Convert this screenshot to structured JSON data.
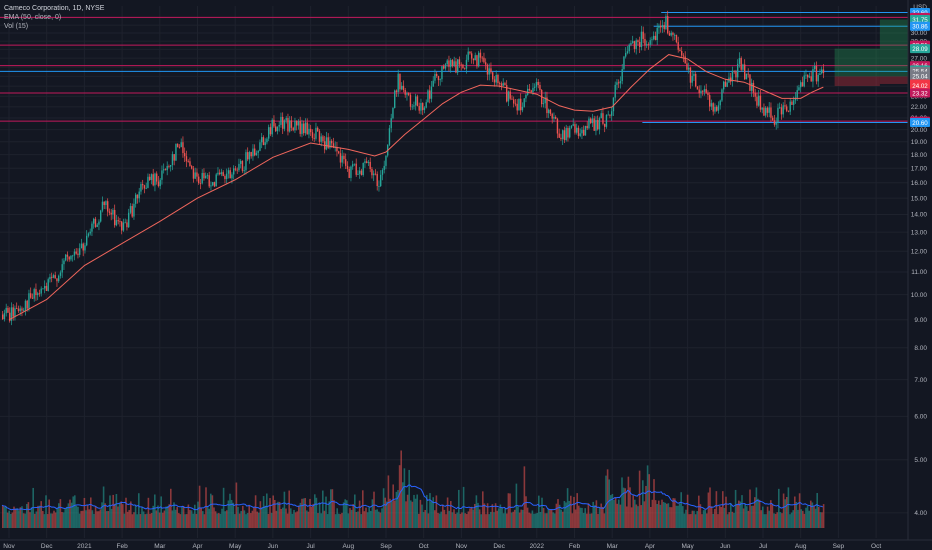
{
  "header": {
    "symbol_title": "Cameco Corporation, 1D, NYSE",
    "indicator_ema": "EMA (50, close, 0)",
    "indicator_vol": "Vol (15)"
  },
  "chart_data": {
    "type": "candlestick",
    "currency_label": "USD",
    "ylim": [
      3.6,
      33.6
    ],
    "y_ticks": [
      4.0,
      5.0,
      6.0,
      7.0,
      8.0,
      9.0,
      10.0,
      11.0,
      12.0,
      13.0,
      14.0,
      15.0,
      16.0,
      17.0,
      18.0,
      19.0,
      20.0,
      21.0,
      22.0,
      23.0,
      24.0,
      25.0,
      26.0,
      27.0,
      28.0,
      29.0,
      30.0,
      31.0,
      32.0
    ],
    "x_ticks": [
      {
        "label": "Nov",
        "month": 0
      },
      {
        "label": "Dec",
        "month": 1
      },
      {
        "label": "2021",
        "month": 2
      },
      {
        "label": "Feb",
        "month": 3
      },
      {
        "label": "Mar",
        "month": 4
      },
      {
        "label": "Apr",
        "month": 5
      },
      {
        "label": "May",
        "month": 6
      },
      {
        "label": "Jun",
        "month": 7
      },
      {
        "label": "Jul",
        "month": 8
      },
      {
        "label": "Aug",
        "month": 9
      },
      {
        "label": "Sep",
        "month": 10
      },
      {
        "label": "Oct",
        "month": 11
      },
      {
        "label": "Nov",
        "month": 12
      },
      {
        "label": "Dec",
        "month": 13
      },
      {
        "label": "2022",
        "month": 14
      },
      {
        "label": "Feb",
        "month": 15
      },
      {
        "label": "Mar",
        "month": 16
      },
      {
        "label": "Apr",
        "month": 17
      },
      {
        "label": "May",
        "month": 18
      },
      {
        "label": "Jun",
        "month": 19
      },
      {
        "label": "Jul",
        "month": 20
      },
      {
        "label": "Aug",
        "month": 21
      },
      {
        "label": "Sep",
        "month": 22
      },
      {
        "label": "Oct",
        "month": 23
      }
    ],
    "price_path": [
      [
        0,
        9.2
      ],
      [
        1,
        10.3
      ],
      [
        1.5,
        11.5
      ],
      [
        2,
        12.3
      ],
      [
        2.5,
        14.5
      ],
      [
        3,
        13.2
      ],
      [
        3.6,
        16.0
      ],
      [
        4,
        16.3
      ],
      [
        4.5,
        18.8
      ],
      [
        5,
        16.2
      ],
      [
        5.7,
        16.3
      ],
      [
        6,
        16.6
      ],
      [
        6.6,
        18.8
      ],
      [
        7.1,
        20.7
      ],
      [
        7.6,
        20.2
      ],
      [
        8,
        19.8
      ],
      [
        8.5,
        18.6
      ],
      [
        9,
        16.8
      ],
      [
        9.5,
        17.2
      ],
      [
        9.8,
        16.0
      ],
      [
        10,
        18.2
      ],
      [
        10.3,
        24.9
      ],
      [
        10.6,
        22.3
      ],
      [
        11,
        22.4
      ],
      [
        11.5,
        26.2
      ],
      [
        12,
        26.0
      ],
      [
        12.3,
        27.5
      ],
      [
        12.8,
        24.8
      ],
      [
        13.2,
        23.2
      ],
      [
        13.5,
        22.3
      ],
      [
        14,
        23.8
      ],
      [
        14.6,
        19.6
      ],
      [
        15,
        19.9
      ],
      [
        15.4,
        20.3
      ],
      [
        15.9,
        21.0
      ],
      [
        16.2,
        25.4
      ],
      [
        16.5,
        29.0
      ],
      [
        17,
        29.5
      ],
      [
        17.4,
        31.3
      ],
      [
        17.7,
        28.2
      ],
      [
        18,
        25.4
      ],
      [
        18.3,
        24.0
      ],
      [
        18.7,
        21.8
      ],
      [
        19,
        24.3
      ],
      [
        19.4,
        26.5
      ],
      [
        19.7,
        23.5
      ],
      [
        20,
        21.5
      ],
      [
        20.3,
        21.1
      ],
      [
        20.7,
        22.2
      ],
      [
        21,
        24.7
      ],
      [
        21.3,
        25.3
      ],
      [
        21.6,
        25.5
      ]
    ],
    "ema_path": [
      [
        0,
        9.0
      ],
      [
        1,
        9.8
      ],
      [
        2,
        11.3
      ],
      [
        3,
        12.4
      ],
      [
        4,
        13.6
      ],
      [
        5,
        15.0
      ],
      [
        6,
        16.2
      ],
      [
        7,
        17.8
      ],
      [
        8,
        18.9
      ],
      [
        9,
        18.4
      ],
      [
        9.7,
        17.9
      ],
      [
        10,
        18.2
      ],
      [
        10.5,
        19.6
      ],
      [
        11,
        20.9
      ],
      [
        11.5,
        22.3
      ],
      [
        12,
        23.4
      ],
      [
        12.5,
        24.1
      ],
      [
        13,
        24.0
      ],
      [
        14,
        23.2
      ],
      [
        14.6,
        22.1
      ],
      [
        15,
        21.7
      ],
      [
        15.5,
        21.6
      ],
      [
        16,
        22.0
      ],
      [
        16.5,
        23.9
      ],
      [
        17,
        25.8
      ],
      [
        17.5,
        27.4
      ],
      [
        18,
        26.9
      ],
      [
        18.5,
        25.5
      ],
      [
        19,
        24.7
      ],
      [
        19.5,
        24.4
      ],
      [
        20,
        23.6
      ],
      [
        20.5,
        22.8
      ],
      [
        21,
        22.8
      ],
      [
        21.3,
        23.4
      ],
      [
        21.6,
        23.9
      ]
    ],
    "horizontal_levels": [
      {
        "label": "32.03",
        "price": 32.03,
        "color": "#c2185b"
      },
      {
        "label": "28.51",
        "price": 28.51,
        "color": "#c2185b"
      },
      {
        "label": "26.16",
        "price": 26.16,
        "color": "#c2185b"
      },
      {
        "label": "23.32",
        "price": 23.32,
        "color": "#c2185b"
      },
      {
        "label": "20.72",
        "price": 20.72,
        "color": "#c2185b"
      },
      {
        "label": "32.69",
        "price": 32.69,
        "color": "#2196f3"
      },
      {
        "label": "30.86",
        "price": 30.86,
        "color": "#2196f3"
      },
      {
        "label": "25.54",
        "price": 25.54,
        "color": "#2196f3"
      },
      {
        "label": "20.60",
        "price": 20.6,
        "color": "#2196f3"
      }
    ],
    "price_badges": [
      {
        "label": "32.69",
        "price": 32.69,
        "bg": "#2196f3"
      },
      {
        "label": "32.03",
        "price": 32.03,
        "bg": "#c2185b"
      },
      {
        "label": "31.75",
        "price": 31.75,
        "bg": "#26a69a"
      },
      {
        "label": "30.86",
        "price": 30.86,
        "bg": "#2196f3"
      },
      {
        "label": "28.51",
        "price": 28.51,
        "bg": "#c2185b"
      },
      {
        "label": "28.09",
        "price": 28.09,
        "bg": "#26a69a"
      },
      {
        "label": "26.16",
        "price": 26.16,
        "bg": "#c2185b"
      },
      {
        "label": "25.69",
        "price": 25.69,
        "bg": "#26a69a"
      },
      {
        "label": "25.54",
        "price": 25.54,
        "bg": "#787b86"
      },
      {
        "label": "25.04",
        "price": 25.04,
        "bg": "#787b86"
      },
      {
        "label": "24.22",
        "price": 24.22,
        "bg": "#f23645"
      },
      {
        "label": "24.02",
        "price": 24.02,
        "bg": "#f23645"
      },
      {
        "label": "23.32",
        "price": 23.32,
        "bg": "#c2185b"
      },
      {
        "label": "20.72",
        "price": 20.72,
        "bg": "#c2185b"
      },
      {
        "label": "20.60",
        "price": 20.6,
        "bg": "#2196f3"
      }
    ],
    "position_boxes": [
      {
        "month_start": 21.9,
        "month_end": 23.1,
        "entry": 25.0,
        "target": 28.09,
        "stop": 24.02
      },
      {
        "month_start": 23.1,
        "month_end": 24.2,
        "entry": 25.0,
        "target": 31.75,
        "stop": 24.22
      }
    ],
    "colors": {
      "up": "#26a69a",
      "down": "#ef5350",
      "ema": "#f0665c",
      "vol_ma": "#2962ff",
      "background": "#131722"
    }
  }
}
